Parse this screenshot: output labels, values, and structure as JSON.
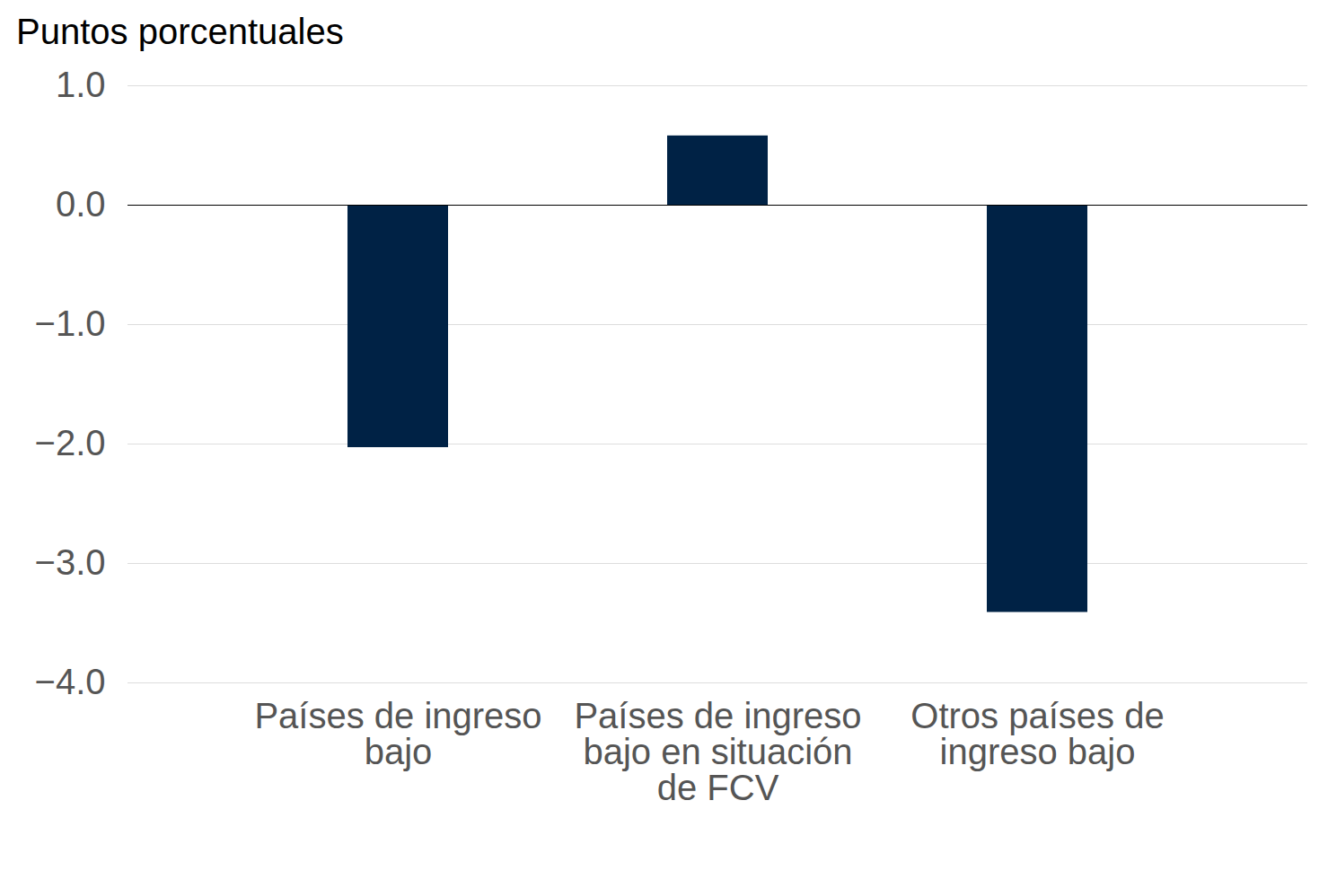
{
  "chart_data": {
    "type": "bar",
    "y_label": "Puntos porcentuales",
    "categories": [
      "Países de ingreso bajo",
      "Países de ingreso bajo en situación de FCV",
      "Otros países de ingreso bajo"
    ],
    "values": [
      -2.03,
      0.58,
      -3.41
    ],
    "color": "#002245",
    "ylim": [
      -4,
      1
    ],
    "yticks": [
      -4,
      -3,
      -2,
      -1,
      0,
      1
    ],
    "grid": true
  }
}
